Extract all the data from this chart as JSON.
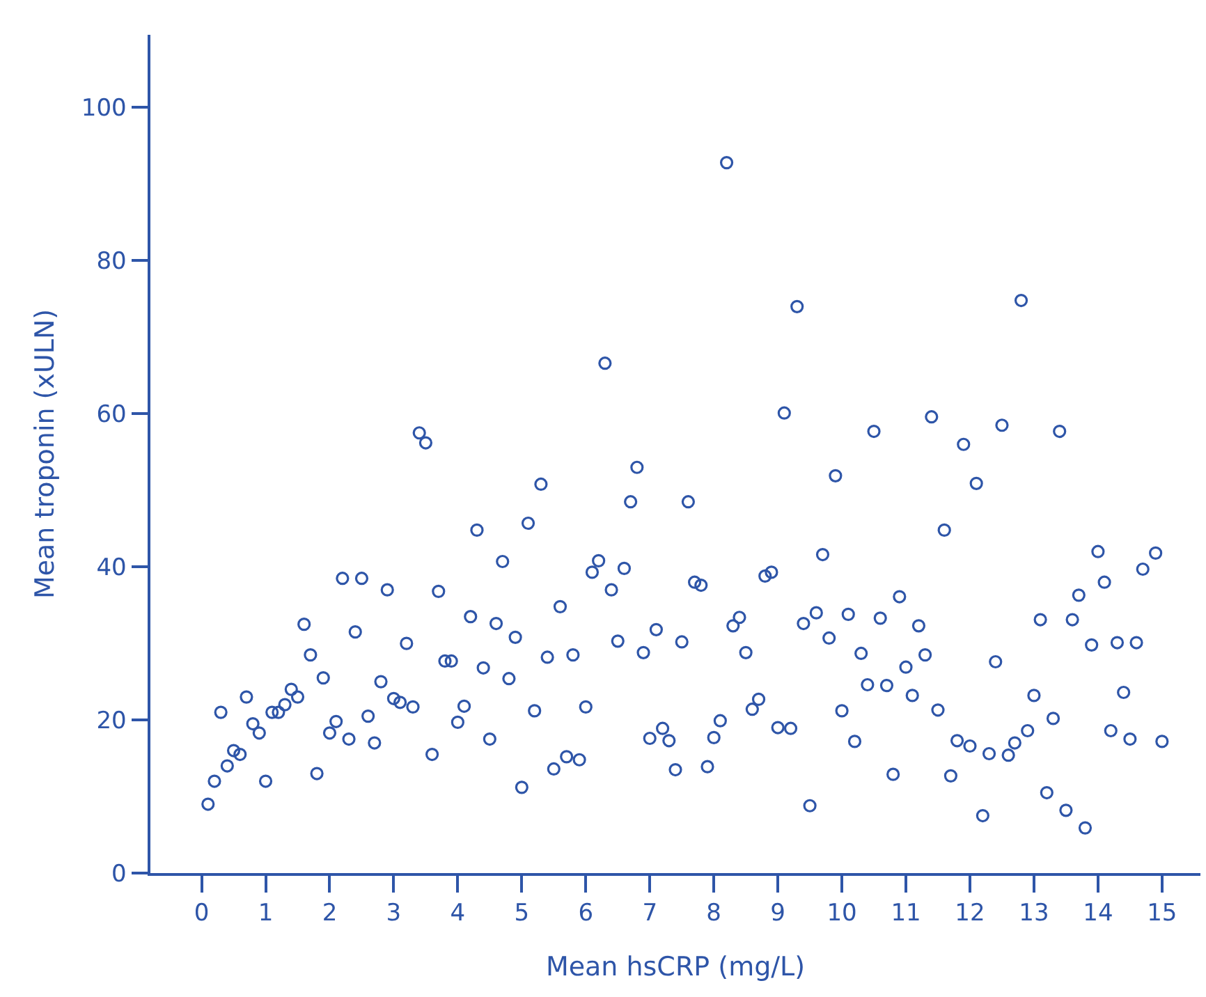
{
  "chart_data": {
    "type": "scatter",
    "xlabel": "Mean hsCRP (mg/L)",
    "ylabel": "Mean troponin (xULN)",
    "x": [
      0.1,
      0.2,
      0.3,
      0.4,
      0.5,
      0.6,
      0.7,
      0.8,
      0.9,
      1.0,
      1.1,
      1.2,
      1.3,
      1.4,
      1.5,
      1.6,
      1.7,
      1.8,
      1.9,
      2.0,
      2.1,
      2.2,
      2.3,
      2.4,
      2.5,
      2.6,
      2.7,
      2.8,
      2.9,
      3.0,
      3.1,
      3.2,
      3.3,
      3.4,
      3.5,
      3.6,
      3.7,
      3.8,
      3.9,
      4.0,
      4.1,
      4.2,
      4.3,
      4.4,
      4.5,
      4.6,
      4.7,
      4.8,
      4.9,
      5.0,
      5.1,
      5.2,
      5.3,
      5.4,
      5.5,
      5.6,
      5.7,
      5.8,
      5.9,
      6.0,
      6.1,
      6.2,
      6.3,
      6.4,
      6.5,
      6.6,
      6.7,
      6.8,
      6.9,
      7.0,
      7.1,
      7.2,
      7.3,
      7.4,
      7.5,
      7.6,
      7.7,
      7.8,
      7.9,
      8.0,
      8.1,
      8.2,
      8.3,
      8.4,
      8.5,
      8.6,
      8.7,
      8.8,
      8.9,
      9.0,
      9.1,
      9.2,
      9.3,
      9.4,
      9.5,
      9.6,
      9.7,
      9.8,
      9.9,
      10.0,
      10.1,
      10.2,
      10.3,
      10.4,
      10.5,
      10.6,
      10.7,
      10.8,
      10.9,
      11.0,
      11.1,
      11.2,
      11.3,
      11.4,
      11.5,
      11.6,
      11.7,
      11.8,
      11.9,
      12.0,
      12.1,
      12.2,
      12.3,
      12.4,
      12.5,
      12.6,
      12.7,
      12.8,
      12.9,
      13.0,
      13.1,
      13.2,
      13.3,
      13.4,
      13.5,
      13.6,
      13.7,
      13.8,
      13.9,
      14.0,
      14.1,
      14.2,
      14.3,
      14.4,
      14.5,
      14.6,
      14.7,
      14.9,
      15.0
    ],
    "series": [
      {
        "color": "#2e55a8",
        "values": [
          9,
          12,
          21,
          14,
          16,
          15.5,
          23,
          19.5,
          18.3,
          12,
          21,
          21,
          22,
          24,
          23,
          32.5,
          28.5,
          13,
          25.5,
          18.3,
          19.8,
          38.5,
          17.5,
          31.5,
          38.5,
          20.5,
          17,
          25,
          37,
          22.8,
          22.3,
          30,
          21.7,
          57.5,
          56.2,
          15.5,
          36.8,
          27.7,
          27.7,
          19.7,
          21.8,
          33.5,
          44.8,
          26.8,
          17.5,
          32.6,
          40.7,
          25.4,
          30.8,
          11.2,
          45.7,
          21.2,
          50.8,
          28.2,
          13.6,
          34.8,
          15.2,
          28.5,
          14.8,
          21.7,
          39.3,
          40.8,
          66.6,
          37,
          30.3,
          39.8,
          48.5,
          53,
          28.8,
          17.6,
          31.8,
          18.9,
          17.3,
          13.5,
          30.2,
          48.5,
          38,
          37.6,
          13.9,
          17.7,
          19.9,
          92.8,
          32.3,
          33.4,
          28.8,
          21.4,
          22.7,
          38.8,
          39.3,
          19,
          60.1,
          18.9,
          74,
          32.6,
          8.8,
          34,
          41.6,
          30.7,
          51.9,
          21.2,
          33.8,
          17.2,
          28.7,
          24.6,
          57.7,
          33.3,
          24.5,
          12.9,
          36.1,
          26.9,
          23.2,
          32.3,
          28.5,
          59.6,
          21.3,
          44.8,
          12.7,
          17.3,
          56,
          16.6,
          50.9,
          7.5,
          15.6,
          27.6,
          58.5,
          15.4,
          17,
          74.8,
          18.6,
          23.2,
          33.1,
          10.5,
          20.2,
          57.7,
          8.2,
          33.1,
          36.3,
          5.9,
          29.8,
          42,
          38,
          18.6,
          30.1,
          23.6,
          17.5,
          30.1,
          39.7,
          41.8,
          17.2
        ]
      }
    ],
    "xlim": [
      -0.8,
      15.6
    ],
    "xticks": [
      0,
      1,
      2,
      3,
      4,
      5,
      6,
      7,
      8,
      9,
      10,
      11,
      12,
      13,
      14,
      15
    ],
    "ylim": [
      0,
      109.5
    ],
    "yticks": [
      0,
      20,
      40,
      60,
      80,
      100
    ],
    "marker": "circle"
  }
}
